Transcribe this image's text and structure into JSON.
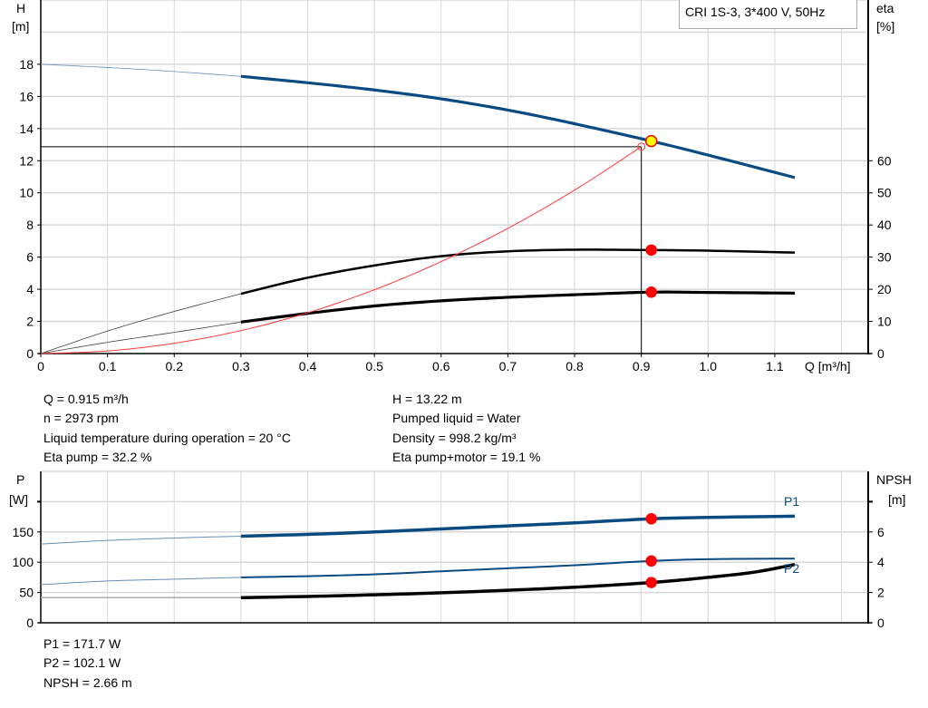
{
  "legend_box": "CRI 1S-3, 3*400 V, 50Hz",
  "colors": {
    "head": "#0a4a82",
    "efficiency": "#000000",
    "system": "#ff3b3b",
    "power": "#0a4a82",
    "npsh": "#000000",
    "marker": "#ff0000",
    "duty_point_fill": "#ffff00",
    "grid": "#d8d8d8"
  },
  "info_top": {
    "left": [
      "Q = 0.915 m³/h",
      "n = 2973 rpm",
      "Liquid temperature during operation = 20 °C",
      "Eta pump = 32.2 %"
    ],
    "right": [
      "H = 13.22 m",
      "Pumped liquid = Water",
      "Density = 998.2 kg/m³",
      "Eta pump+motor = 19.1 %"
    ]
  },
  "info_bottom": [
    "P1 = 171.7 W",
    "P2 = 102.1 W",
    "NPSH = 2.66 m"
  ],
  "chart_data": [
    {
      "type": "line",
      "title": "",
      "xlabel": "Q [m³/h]",
      "ylabel": [
        "H",
        "[m]"
      ],
      "y2label": [
        "eta",
        "[%]"
      ],
      "xlim": [
        0,
        1.24
      ],
      "ylim": [
        0,
        22
      ],
      "y2lim": [
        0,
        110
      ],
      "xticks": [
        "0",
        "0.1",
        "0.2",
        "0.3",
        "0.4",
        "0.5",
        "0.6",
        "0.7",
        "0.8",
        "0.9",
        "1.0",
        "1.1"
      ],
      "yticks": [
        "0",
        "2",
        "4",
        "6",
        "8",
        "10",
        "12",
        "14",
        "16",
        "18"
      ],
      "y2ticks": [
        "0",
        "10",
        "20",
        "30",
        "40",
        "50",
        "60"
      ],
      "grid": true,
      "series": [
        {
          "key": "H",
          "axis": "left",
          "thin_until": 0.3,
          "x": [
            0,
            0.1,
            0.2,
            0.3,
            0.4,
            0.5,
            0.6,
            0.7,
            0.8,
            0.915,
            1.0,
            1.13
          ],
          "y": [
            18.0,
            17.8,
            17.55,
            17.25,
            16.85,
            16.4,
            15.85,
            15.15,
            14.3,
            13.22,
            12.35,
            10.95
          ]
        },
        {
          "key": "eta_pump",
          "axis": "right",
          "thin_until": 0.3,
          "x": [
            0,
            0.1,
            0.2,
            0.3,
            0.4,
            0.5,
            0.6,
            0.7,
            0.8,
            0.915,
            1.0,
            1.13
          ],
          "y": [
            0,
            7.0,
            13.1,
            18.6,
            23.6,
            27.4,
            30.3,
            31.8,
            32.3,
            32.2,
            32.0,
            31.4
          ]
        },
        {
          "key": "eta_pump_motor",
          "axis": "right",
          "thin_until": 0.3,
          "x": [
            0,
            0.1,
            0.2,
            0.3,
            0.4,
            0.5,
            0.6,
            0.7,
            0.8,
            0.915,
            1.0,
            1.13
          ],
          "y": [
            0,
            3.5,
            6.6,
            9.8,
            12.5,
            14.8,
            16.4,
            17.5,
            18.3,
            19.1,
            19.0,
            18.8
          ]
        },
        {
          "key": "system",
          "axis": "left",
          "x": [
            0,
            0.1,
            0.2,
            0.3,
            0.4,
            0.5,
            0.6,
            0.7,
            0.8,
            0.9
          ],
          "y": [
            0,
            0.16,
            0.64,
            1.43,
            2.54,
            3.97,
            5.72,
            7.79,
            10.17,
            12.87
          ]
        }
      ],
      "duty_point": {
        "Q": 0.915,
        "H": 13.22,
        "eta_pump": 32.2,
        "eta_pump_motor": 19.1
      },
      "crosshair": {
        "Q": 0.9,
        "H": 12.87
      }
    },
    {
      "type": "line",
      "title": "",
      "ylabel": [
        "P",
        "[W]"
      ],
      "y2label": [
        "NPSH",
        "[m]"
      ],
      "xlim": [
        0,
        1.24
      ],
      "ylim": [
        0,
        250
      ],
      "y2lim": [
        0,
        10
      ],
      "yticks": [
        "0",
        "50",
        "100",
        "150"
      ],
      "y2ticks": [
        "0",
        "2",
        "4",
        "6"
      ],
      "grid": true,
      "series": [
        {
          "name": "P1",
          "axis": "left",
          "thin_until": 0.3,
          "x": [
            0,
            0.1,
            0.2,
            0.3,
            0.4,
            0.5,
            0.6,
            0.7,
            0.8,
            0.915,
            1.0,
            1.13
          ],
          "y": [
            130,
            136,
            140,
            143,
            146,
            150,
            155,
            160,
            165,
            171.7,
            174,
            176
          ]
        },
        {
          "name": "P2",
          "axis": "left",
          "thin_until": 0.3,
          "x": [
            0,
            0.1,
            0.2,
            0.3,
            0.4,
            0.5,
            0.6,
            0.7,
            0.8,
            0.915,
            1.0,
            1.13
          ],
          "y": [
            63,
            69,
            72,
            75,
            77,
            80,
            85,
            90,
            95,
            102.1,
            105,
            106
          ]
        },
        {
          "key": "NPSH",
          "axis": "right",
          "flat_until": 0.3,
          "x": [
            0,
            0.3,
            0.4,
            0.5,
            0.6,
            0.7,
            0.8,
            0.915,
            1.0,
            1.07,
            1.13
          ],
          "y": [
            1.66,
            1.66,
            1.74,
            1.85,
            1.98,
            2.15,
            2.35,
            2.66,
            3.0,
            3.35,
            3.85
          ]
        }
      ],
      "duty_point": {
        "Q": 0.915,
        "P1": 171.7,
        "P2": 102.1,
        "NPSH": 2.66
      }
    }
  ]
}
